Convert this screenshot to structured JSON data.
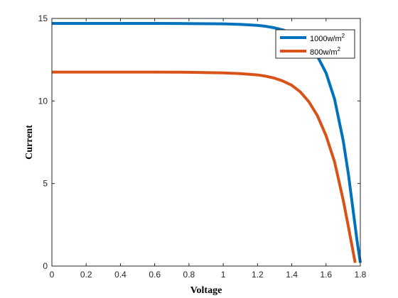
{
  "chart_data": {
    "type": "line",
    "title": "",
    "xlabel": "Voltage",
    "ylabel": "Current",
    "xlim": [
      0,
      1.8
    ],
    "ylim": [
      0,
      15
    ],
    "xticks": [
      0,
      0.2,
      0.4,
      0.6,
      0.8,
      1,
      1.2,
      1.4,
      1.6,
      1.8
    ],
    "xtick_labels": [
      "0",
      "0.2",
      "0.4",
      "0.6",
      "0.8",
      "1",
      "1.2",
      "1.4",
      "1.6",
      "1.8"
    ],
    "yticks": [
      0,
      5,
      10,
      15
    ],
    "ytick_labels": [
      "0",
      "5",
      "10",
      "15"
    ],
    "grid": false,
    "legend_position": "top-right",
    "series": [
      {
        "name": "1000w/m",
        "name_superscript": "2",
        "color": "#0072BD",
        "x": [
          0,
          0.2,
          0.4,
          0.6,
          0.8,
          1.0,
          1.1,
          1.2,
          1.25,
          1.3,
          1.35,
          1.4,
          1.45,
          1.5,
          1.55,
          1.6,
          1.65,
          1.7,
          1.73,
          1.76,
          1.78,
          1.8
        ],
        "y": [
          14.7,
          14.7,
          14.7,
          14.7,
          14.69,
          14.67,
          14.64,
          14.58,
          14.52,
          14.43,
          14.3,
          14.1,
          13.8,
          13.35,
          12.7,
          11.7,
          10.1,
          7.6,
          5.6,
          3.2,
          1.6,
          0.2
        ]
      },
      {
        "name": "800w/m",
        "name_superscript": "2",
        "color": "#D95319",
        "x": [
          0,
          0.2,
          0.4,
          0.6,
          0.8,
          1.0,
          1.1,
          1.2,
          1.25,
          1.3,
          1.35,
          1.4,
          1.45,
          1.5,
          1.55,
          1.6,
          1.65,
          1.7,
          1.73,
          1.75,
          1.77
        ],
        "y": [
          11.75,
          11.75,
          11.75,
          11.75,
          11.74,
          11.7,
          11.66,
          11.58,
          11.5,
          11.38,
          11.2,
          10.95,
          10.55,
          9.95,
          9.1,
          7.9,
          6.3,
          4.0,
          2.4,
          1.3,
          0.2
        ]
      }
    ]
  }
}
